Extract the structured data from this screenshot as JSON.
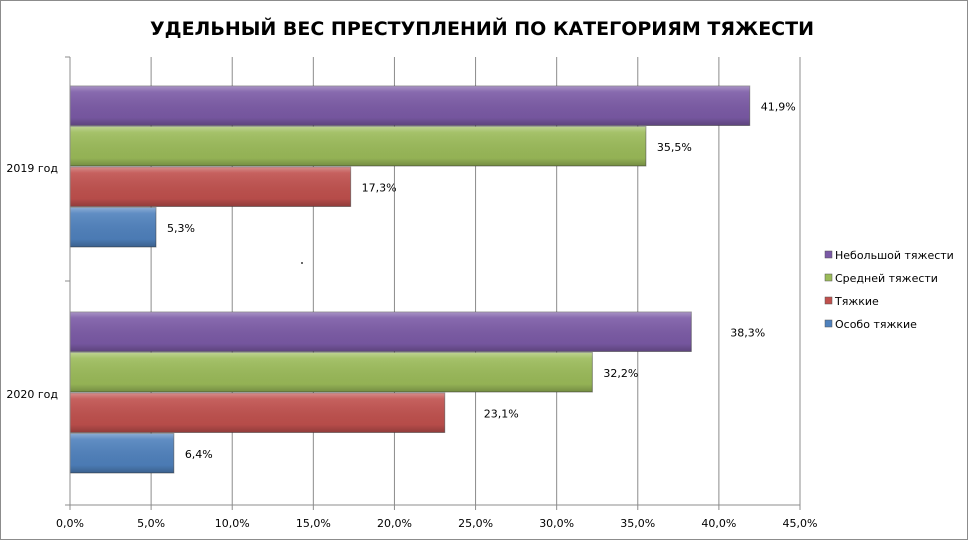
{
  "chart_data": {
    "type": "bar",
    "orientation": "horizontal",
    "title": "УДЕЛЬНЫЙ ВЕС ПРЕСТУПЛЕНИЙ ПО КАТЕГОРИЯМ ТЯЖЕСТИ",
    "categories": [
      "2019 год",
      "2020 год"
    ],
    "series": [
      {
        "name": "Небольшой тяжести",
        "color": "#7b5aa6",
        "values": [
          41.9,
          38.3
        ],
        "labels": [
          "41,9%",
          "38,3%"
        ]
      },
      {
        "name": "Средней тяжести",
        "color": "#9bbb59",
        "values": [
          35.5,
          32.2
        ],
        "labels": [
          "35,5%",
          "32,2%"
        ]
      },
      {
        "name": "Тяжкие",
        "color": "#c0504d",
        "values": [
          17.3,
          23.1
        ],
        "labels": [
          "17,3%",
          "23,1%"
        ]
      },
      {
        "name": "Особо тяжкие",
        "color": "#4f81bd",
        "values": [
          5.3,
          6.4
        ],
        "labels": [
          "5,3%",
          "6,4%"
        ]
      }
    ],
    "xlim": [
      0,
      45
    ],
    "xticks": [
      "0,0%",
      "5,0%",
      "10,0%",
      "15,0%",
      "20,0%",
      "25,0%",
      "30,0%",
      "35,0%",
      "40,0%",
      "45,0%"
    ],
    "grid": true,
    "legend": "right"
  }
}
